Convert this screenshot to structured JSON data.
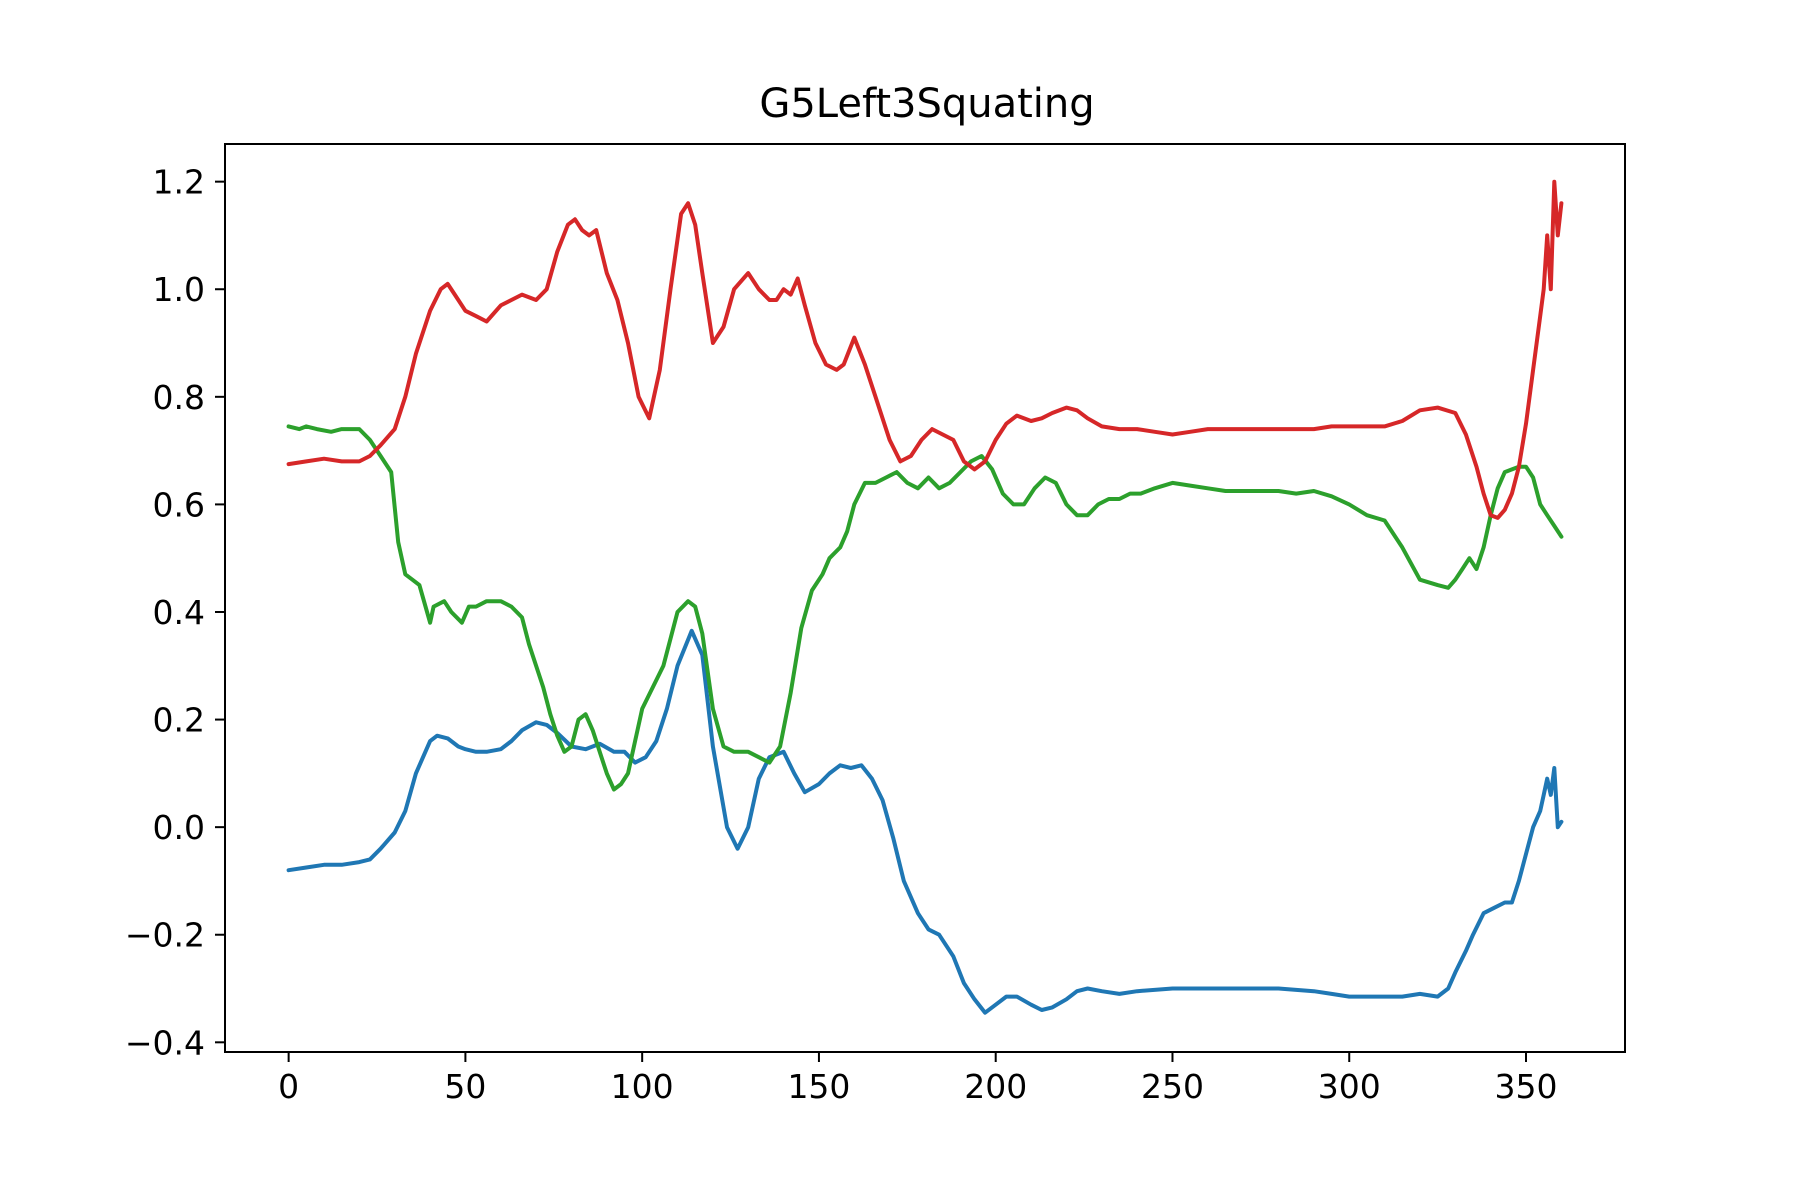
{
  "chart_data": {
    "type": "line",
    "title": "G5Left3Squating",
    "xlabel": "",
    "ylabel": "",
    "xlim": [
      -18,
      378
    ],
    "ylim": [
      -0.418,
      1.27
    ],
    "xticks": [
      0,
      50,
      100,
      150,
      200,
      250,
      300,
      350
    ],
    "xtick_labels": [
      "0",
      "50",
      "100",
      "150",
      "200",
      "250",
      "300",
      "350"
    ],
    "yticks": [
      -0.4,
      -0.2,
      0.0,
      0.2,
      0.4,
      0.6,
      0.8,
      1.0,
      1.2
    ],
    "ytick_labels": [
      "−0.4",
      "−0.2",
      "0.0",
      "0.2",
      "0.4",
      "0.6",
      "0.8",
      "1.0",
      "1.2"
    ],
    "grid": false,
    "legend": "none",
    "series": [
      {
        "color": "#1f77b4",
        "x": [
          0,
          5,
          10,
          15,
          20,
          23,
          26,
          30,
          33,
          36,
          40,
          42,
          45,
          48,
          50,
          53,
          56,
          60,
          63,
          66,
          70,
          73,
          76,
          80,
          84,
          88,
          92,
          95,
          98,
          101,
          104,
          107,
          110,
          114,
          117,
          120,
          124,
          127,
          130,
          133,
          136,
          140,
          143,
          146,
          150,
          153,
          156,
          159,
          162,
          165,
          168,
          171,
          174,
          178,
          181,
          184,
          188,
          191,
          194,
          197,
          200,
          203,
          206,
          210,
          213,
          216,
          220,
          223,
          226,
          230,
          235,
          240,
          250,
          260,
          270,
          280,
          290,
          295,
          300,
          310,
          315,
          320,
          325,
          328,
          330,
          333,
          335,
          338,
          341,
          344,
          346,
          348,
          350,
          352,
          354,
          355,
          356,
          357,
          358,
          359,
          360
        ],
        "values": [
          -0.08,
          -0.075,
          -0.07,
          -0.07,
          -0.065,
          -0.06,
          -0.04,
          -0.01,
          0.03,
          0.1,
          0.16,
          0.17,
          0.165,
          0.15,
          0.145,
          0.14,
          0.14,
          0.145,
          0.16,
          0.18,
          0.195,
          0.19,
          0.175,
          0.15,
          0.145,
          0.155,
          0.14,
          0.14,
          0.12,
          0.13,
          0.16,
          0.22,
          0.3,
          0.365,
          0.32,
          0.15,
          0.0,
          -0.04,
          0.0,
          0.09,
          0.13,
          0.14,
          0.1,
          0.065,
          0.08,
          0.1,
          0.115,
          0.11,
          0.115,
          0.09,
          0.05,
          -0.02,
          -0.1,
          -0.16,
          -0.19,
          -0.2,
          -0.24,
          -0.29,
          -0.32,
          -0.345,
          -0.33,
          -0.315,
          -0.315,
          -0.33,
          -0.34,
          -0.335,
          -0.32,
          -0.305,
          -0.3,
          -0.305,
          -0.31,
          -0.305,
          -0.3,
          -0.3,
          -0.3,
          -0.3,
          -0.305,
          -0.31,
          -0.315,
          -0.315,
          -0.315,
          -0.31,
          -0.315,
          -0.3,
          -0.27,
          -0.23,
          -0.2,
          -0.16,
          -0.15,
          -0.14,
          -0.14,
          -0.1,
          -0.05,
          0.0,
          0.03,
          0.06,
          0.09,
          0.06,
          0.11,
          0.0,
          0.01
        ]
      },
      {
        "color": "#2ca02c",
        "x": [
          0,
          3,
          5,
          8,
          12,
          15,
          20,
          23,
          26,
          29,
          31,
          33,
          35,
          37,
          40,
          41,
          44,
          46,
          49,
          51,
          53,
          56,
          60,
          63,
          66,
          68,
          70,
          72,
          74,
          76,
          78,
          80,
          82,
          84,
          86,
          88,
          90,
          92,
          94,
          96,
          98,
          100,
          103,
          106,
          110,
          113,
          115,
          117,
          120,
          123,
          126,
          130,
          133,
          136,
          139,
          142,
          145,
          148,
          151,
          153,
          156,
          158,
          160,
          163,
          166,
          169,
          172,
          175,
          178,
          181,
          184,
          187,
          190,
          193,
          196,
          199,
          202,
          205,
          208,
          211,
          214,
          217,
          220,
          223,
          226,
          229,
          232,
          235,
          238,
          241,
          245,
          250,
          255,
          260,
          265,
          270,
          275,
          280,
          285,
          290,
          295,
          300,
          305,
          310,
          315,
          320,
          325,
          328,
          330,
          332,
          334,
          336,
          338,
          340,
          342,
          344,
          346,
          348,
          350,
          352,
          354,
          356,
          358,
          360
        ],
        "values": [
          0.745,
          0.74,
          0.745,
          0.74,
          0.735,
          0.74,
          0.74,
          0.72,
          0.69,
          0.66,
          0.53,
          0.47,
          0.46,
          0.45,
          0.38,
          0.41,
          0.42,
          0.4,
          0.38,
          0.41,
          0.41,
          0.42,
          0.42,
          0.41,
          0.39,
          0.34,
          0.3,
          0.26,
          0.21,
          0.17,
          0.14,
          0.15,
          0.2,
          0.21,
          0.18,
          0.14,
          0.1,
          0.07,
          0.08,
          0.1,
          0.16,
          0.22,
          0.26,
          0.3,
          0.4,
          0.42,
          0.41,
          0.36,
          0.22,
          0.15,
          0.14,
          0.14,
          0.13,
          0.12,
          0.15,
          0.25,
          0.37,
          0.44,
          0.47,
          0.5,
          0.52,
          0.55,
          0.6,
          0.64,
          0.64,
          0.65,
          0.66,
          0.64,
          0.63,
          0.65,
          0.63,
          0.64,
          0.66,
          0.68,
          0.69,
          0.665,
          0.62,
          0.6,
          0.6,
          0.63,
          0.65,
          0.64,
          0.6,
          0.58,
          0.58,
          0.6,
          0.61,
          0.61,
          0.62,
          0.62,
          0.63,
          0.64,
          0.635,
          0.63,
          0.625,
          0.625,
          0.625,
          0.625,
          0.62,
          0.625,
          0.615,
          0.6,
          0.58,
          0.57,
          0.52,
          0.46,
          0.45,
          0.445,
          0.46,
          0.48,
          0.5,
          0.48,
          0.52,
          0.58,
          0.63,
          0.66,
          0.665,
          0.67,
          0.67,
          0.65,
          0.6,
          0.58,
          0.56,
          0.54
        ]
      },
      {
        "color": "#d62728",
        "x": [
          0,
          5,
          10,
          15,
          20,
          23,
          26,
          30,
          33,
          36,
          40,
          43,
          45,
          47,
          50,
          53,
          56,
          60,
          63,
          66,
          70,
          73,
          76,
          79,
          81,
          83,
          85,
          87,
          90,
          93,
          96,
          99,
          102,
          105,
          108,
          111,
          113,
          115,
          117,
          120,
          123,
          126,
          130,
          133,
          136,
          138,
          140,
          142,
          144,
          146,
          149,
          152,
          155,
          157,
          160,
          163,
          166,
          170,
          173,
          176,
          179,
          182,
          185,
          188,
          191,
          194,
          197,
          200,
          203,
          206,
          210,
          213,
          216,
          220,
          223,
          226,
          230,
          235,
          240,
          245,
          250,
          255,
          260,
          265,
          270,
          275,
          280,
          285,
          290,
          295,
          300,
          305,
          310,
          315,
          320,
          325,
          330,
          333,
          336,
          338,
          340,
          342,
          344,
          346,
          348,
          350,
          352,
          354,
          355,
          356,
          357,
          358,
          359,
          360
        ],
        "values": [
          0.675,
          0.68,
          0.685,
          0.68,
          0.68,
          0.69,
          0.71,
          0.74,
          0.8,
          0.88,
          0.96,
          1.0,
          1.01,
          0.99,
          0.96,
          0.95,
          0.94,
          0.97,
          0.98,
          0.99,
          0.98,
          1.0,
          1.07,
          1.12,
          1.13,
          1.11,
          1.1,
          1.11,
          1.03,
          0.98,
          0.9,
          0.8,
          0.76,
          0.85,
          1.0,
          1.14,
          1.16,
          1.12,
          1.03,
          0.9,
          0.93,
          1.0,
          1.03,
          1.0,
          0.98,
          0.98,
          1.0,
          0.99,
          1.02,
          0.97,
          0.9,
          0.86,
          0.85,
          0.86,
          0.91,
          0.86,
          0.8,
          0.72,
          0.68,
          0.69,
          0.72,
          0.74,
          0.73,
          0.72,
          0.68,
          0.665,
          0.68,
          0.72,
          0.75,
          0.765,
          0.755,
          0.76,
          0.77,
          0.78,
          0.775,
          0.76,
          0.745,
          0.74,
          0.74,
          0.735,
          0.73,
          0.735,
          0.74,
          0.74,
          0.74,
          0.74,
          0.74,
          0.74,
          0.74,
          0.745,
          0.745,
          0.745,
          0.745,
          0.755,
          0.775,
          0.78,
          0.77,
          0.73,
          0.67,
          0.62,
          0.58,
          0.575,
          0.59,
          0.62,
          0.67,
          0.75,
          0.85,
          0.95,
          1.0,
          1.1,
          1.0,
          1.2,
          1.1,
          1.16
        ]
      }
    ]
  }
}
